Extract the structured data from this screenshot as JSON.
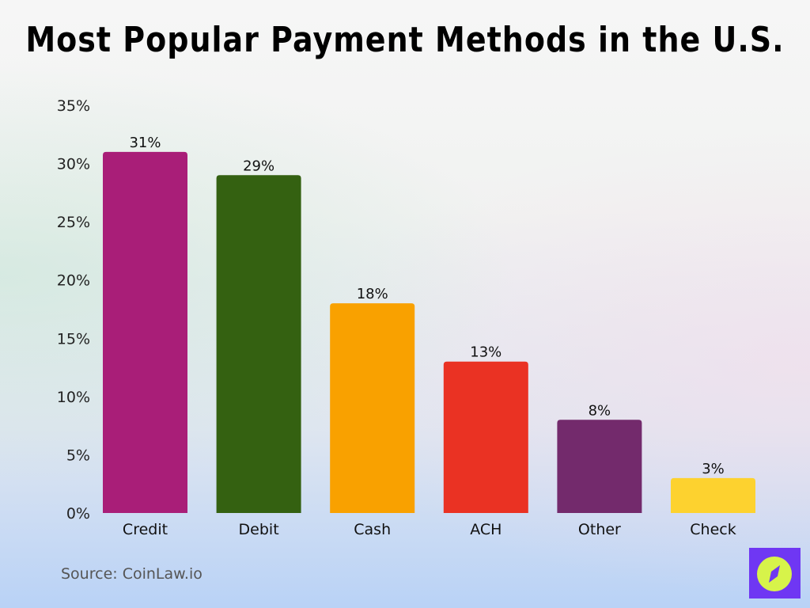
{
  "chart_data": {
    "type": "bar",
    "title": "Most Popular Payment Methods in the U.S.",
    "categories": [
      "Credit",
      "Debit",
      "Cash",
      "ACH",
      "Other",
      "Check"
    ],
    "values": [
      31,
      29,
      18,
      13,
      8,
      3
    ],
    "data_labels": [
      "31%",
      "29%",
      "18%",
      "13%",
      "8%",
      "3%"
    ],
    "colors": [
      "#a91e78",
      "#346111",
      "#f9a100",
      "#ea3223",
      "#732a6c",
      "#fdd22f"
    ],
    "ylim": [
      0,
      35
    ],
    "yticks": [
      "0%",
      "5%",
      "10%",
      "15%",
      "20%",
      "25%",
      "30%",
      "35%"
    ],
    "grid": false,
    "xlabel": "",
    "ylabel": ""
  },
  "source": "Source: CoinLaw.io",
  "logo": {
    "icon": "compass-icon",
    "colors": [
      "#6f37f3",
      "#d7f34a"
    ]
  }
}
